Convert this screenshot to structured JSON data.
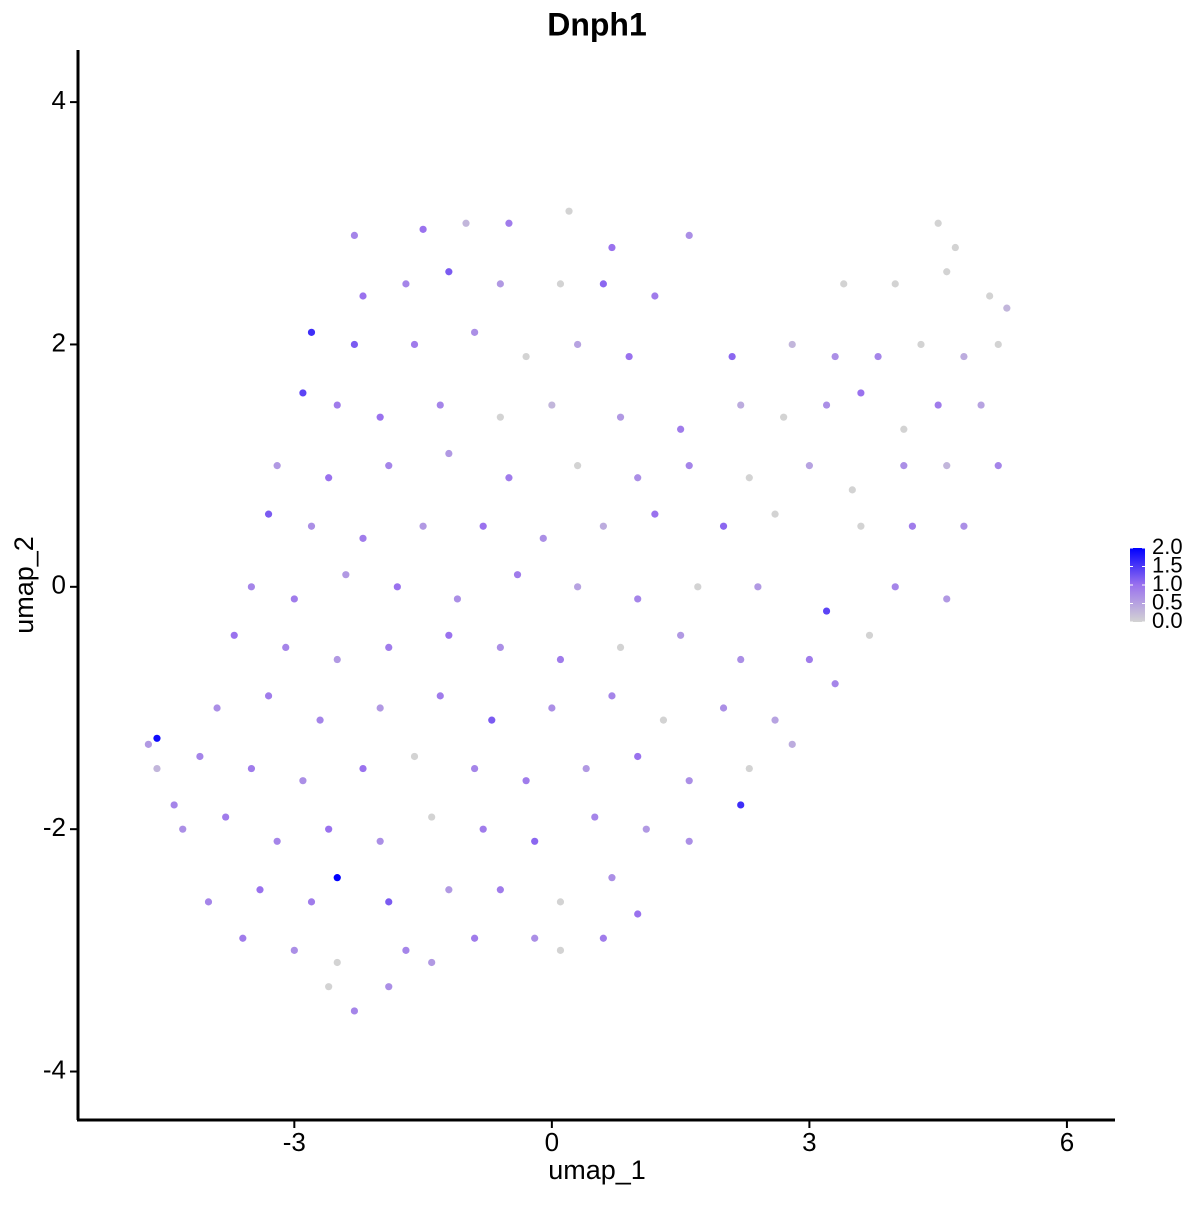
{
  "chart_data": {
    "type": "scatter",
    "title": "Dnph1",
    "x_label": "umap_1",
    "y_label": "umap_2",
    "xlim": [
      -5.52,
      6.56
    ],
    "ylim": [
      -4.4,
      4.43
    ],
    "xticks": [
      -3,
      0,
      3,
      6
    ],
    "yticks": [
      -4,
      -2,
      0,
      2,
      4
    ],
    "grid": false,
    "x": [
      -2.3,
      -1.5,
      -1.0,
      -0.5,
      0.2,
      0.7,
      1.6,
      4.5,
      4.7,
      -2.2,
      -1.7,
      -1.2,
      -0.6,
      0.1,
      0.6,
      1.2,
      3.4,
      4.0,
      4.6,
      5.1,
      5.3,
      -2.8,
      -2.3,
      -1.6,
      -0.9,
      -0.3,
      0.3,
      0.9,
      2.1,
      2.8,
      3.3,
      3.8,
      4.3,
      4.8,
      5.2,
      -2.9,
      -2.5,
      -2.0,
      -1.3,
      -0.6,
      0.0,
      0.8,
      1.5,
      2.2,
      2.7,
      3.2,
      3.6,
      4.1,
      4.5,
      5.0,
      -3.2,
      -2.6,
      -1.9,
      -1.2,
      -0.5,
      0.3,
      1.0,
      1.6,
      2.3,
      3.0,
      3.5,
      4.1,
      4.6,
      5.2,
      -3.3,
      -2.8,
      -2.2,
      -1.5,
      -0.8,
      -0.1,
      0.6,
      1.2,
      2.0,
      2.6,
      3.6,
      4.2,
      4.8,
      -3.5,
      -3.0,
      -2.4,
      -1.8,
      -1.1,
      -0.4,
      0.3,
      1.0,
      1.7,
      2.4,
      3.2,
      4.0,
      4.6,
      -3.7,
      -3.1,
      -2.5,
      -1.9,
      -1.2,
      -0.6,
      0.1,
      0.8,
      1.5,
      2.2,
      3.0,
      3.7,
      -3.9,
      -3.3,
      -2.7,
      -2.0,
      -1.3,
      -0.7,
      0.0,
      0.7,
      1.3,
      2.0,
      2.6,
      3.3,
      -4.1,
      -3.5,
      -2.9,
      -2.2,
      -1.6,
      -0.9,
      -0.3,
      0.4,
      1.0,
      1.6,
      2.3,
      2.8,
      -4.3,
      -3.8,
      -3.2,
      -2.6,
      -2.0,
      -1.4,
      -0.8,
      -0.2,
      0.5,
      1.1,
      1.6,
      2.2,
      -4.0,
      -3.4,
      -2.8,
      -2.5,
      -1.9,
      -1.2,
      -0.6,
      0.1,
      0.7,
      1.0,
      -3.6,
      -3.0,
      -2.5,
      -1.7,
      -1.4,
      -0.9,
      -0.2,
      0.1,
      0.6,
      -2.6,
      -2.3,
      -1.9,
      -4.7,
      -4.6,
      -4.6,
      -4.4
    ],
    "values": [
      2.9,
      2.95,
      3.0,
      3.0,
      3.1,
      2.8,
      2.9,
      3.0,
      2.8,
      2.4,
      2.5,
      2.6,
      2.5,
      2.5,
      2.5,
      2.4,
      2.5,
      2.5,
      2.6,
      2.4,
      2.3,
      2.1,
      2.0,
      2.0,
      2.1,
      1.9,
      2.0,
      1.9,
      1.9,
      2.0,
      1.9,
      1.9,
      2.0,
      1.9,
      2.0,
      1.6,
      1.5,
      1.4,
      1.5,
      1.4,
      1.5,
      1.4,
      1.3,
      1.5,
      1.4,
      1.5,
      1.6,
      1.3,
      1.5,
      1.5,
      1.0,
      0.9,
      1.0,
      1.1,
      0.9,
      1.0,
      0.9,
      1.0,
      0.9,
      1.0,
      0.8,
      1.0,
      1.0,
      1.0,
      0.6,
      0.5,
      0.4,
      0.5,
      0.5,
      0.4,
      0.5,
      0.6,
      0.5,
      0.6,
      0.5,
      0.5,
      0.5,
      0.0,
      -0.1,
      0.1,
      0.0,
      -0.1,
      0.1,
      0.0,
      -0.1,
      0.0,
      0.0,
      -0.2,
      0.0,
      -0.1,
      -0.4,
      -0.5,
      -0.6,
      -0.5,
      -0.4,
      -0.5,
      -0.6,
      -0.5,
      -0.4,
      -0.6,
      -0.6,
      -0.4,
      -1.0,
      -0.9,
      -1.1,
      -1.0,
      -0.9,
      -1.1,
      -1.0,
      -0.9,
      -1.1,
      -1.0,
      -1.1,
      -0.8,
      -1.4,
      -1.5,
      -1.6,
      -1.5,
      -1.4,
      -1.5,
      -1.6,
      -1.5,
      -1.4,
      -1.6,
      -1.5,
      -1.3,
      -2.0,
      -1.9,
      -2.1,
      -2.0,
      -2.1,
      -1.9,
      -2.0,
      -2.1,
      -1.9,
      -2.0,
      -2.1,
      -1.8,
      -2.6,
      -2.5,
      -2.6,
      -2.4,
      -2.6,
      -2.5,
      -2.5,
      -2.6,
      -2.4,
      -2.7,
      -2.9,
      -3.0,
      -3.1,
      -3.0,
      -3.1,
      -2.9,
      -2.9,
      -3.0,
      -2.9,
      -3.3,
      -3.5,
      -3.3,
      -1.3,
      -1.25,
      -1.5,
      -1.8
    ],
    "expression": [
      0.8,
      1.0,
      0.3,
      0.9,
      0,
      1.0,
      0.7,
      0,
      0,
      1.0,
      0.8,
      1.2,
      0.6,
      0,
      1.1,
      0.9,
      0,
      0,
      0,
      0,
      0.3,
      1.6,
      1.2,
      0.9,
      0.7,
      0,
      0.5,
      1.0,
      1.1,
      0.3,
      0.7,
      0.8,
      0,
      0.4,
      0,
      1.4,
      0.9,
      1.0,
      0.8,
      0,
      0.3,
      0.6,
      0.9,
      0.4,
      0,
      0.7,
      1.0,
      0,
      0.9,
      0.5,
      0.6,
      1.0,
      0.8,
      0.6,
      0.9,
      0,
      0.7,
      0.8,
      0,
      0.5,
      0,
      0.7,
      0.3,
      0.8,
      1.2,
      0.7,
      0.9,
      0.6,
      1.0,
      0.7,
      0.4,
      1.0,
      1.1,
      0,
      0,
      0.9,
      0.7,
      0.8,
      0.9,
      0.6,
      1.0,
      0.7,
      0.9,
      0.5,
      0.8,
      0,
      0.6,
      1.4,
      0.8,
      0.6,
      1.0,
      0.8,
      0.6,
      0.9,
      1.0,
      0.7,
      0.9,
      0,
      0.6,
      0.7,
      0.9,
      0,
      0.7,
      0.9,
      0.8,
      0.6,
      0.9,
      1.2,
      0.7,
      0.8,
      0,
      0.7,
      0.5,
      0.8,
      0.8,
      0.9,
      0.7,
      1.0,
      0,
      0.8,
      0.9,
      0.6,
      1.0,
      0.7,
      0,
      0.4,
      0.7,
      0.9,
      0.8,
      1.0,
      0.7,
      0,
      0.9,
      1.1,
      0.8,
      0.6,
      0.7,
      1.6,
      0.8,
      1.0,
      0.9,
      2.0,
      1.2,
      0.6,
      0.9,
      0,
      0.7,
      1.0,
      0.9,
      0.7,
      0,
      0.8,
      0.6,
      0.9,
      0.7,
      0,
      0.9,
      0,
      0.8,
      0.7,
      0.6,
      1.9,
      0.3,
      0.8
    ],
    "colorbar": {
      "lim": [
        0,
        2
      ],
      "colors": [
        "#d3d3d3",
        "#9a72ee",
        "#0000ff"
      ],
      "ticks": [
        {
          "value": 0,
          "label": "0.0"
        },
        {
          "value": 0.5,
          "label": "0.5"
        },
        {
          "value": 1,
          "label": "1.0"
        },
        {
          "value": 1.5,
          "label": "1.5"
        },
        {
          "value": 2,
          "label": "2.0"
        }
      ]
    }
  }
}
